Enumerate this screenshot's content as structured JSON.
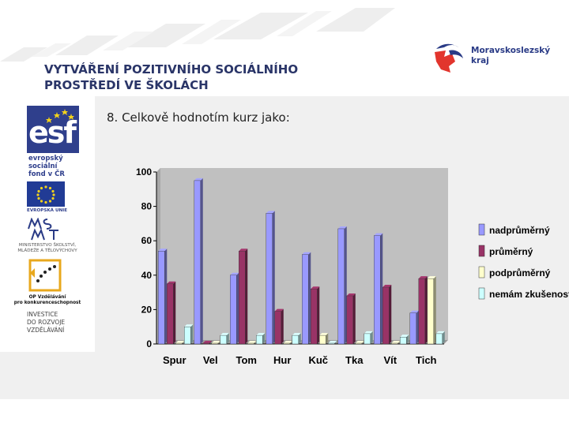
{
  "slide": {
    "title_line1": "VYTVÁŘENÍ POZITIVNÍHO SOCIÁLNÍHO",
    "title_line2": "PROSTŘEDÍ VE ŠKOLÁCH",
    "question": "8. Celkově hodnotím kurz jako:"
  },
  "brand": {
    "name_line1": "Moravskoslezský",
    "name_line2": "kraj",
    "icon": "moravian-silesian-region-logo"
  },
  "sidebar": {
    "esf_word": "esf",
    "esf_sub": [
      "evropský",
      "sociální",
      "fond v ČR"
    ],
    "eu_label": "EVROPSKÁ UNIE",
    "msmt_label": [
      "MINISTERSTVO ŠKOLSTVÍ,",
      "MLÁDEŽE A TĚLOVÝCHOVY"
    ],
    "op_label": [
      "OP Vzdělávání",
      "pro konkurenceschopnost"
    ],
    "invest_label": [
      "INVESTICE",
      "DO ROZVOJE",
      "VZDĚLÁVÁNÍ"
    ]
  },
  "colors": {
    "title": "#2a3568",
    "plot_bg": "#c0c0c0",
    "series": [
      "#9999ff",
      "#993366",
      "#ffffcc",
      "#ccffff"
    ]
  },
  "chart_data": {
    "type": "bar",
    "categories": [
      "Spur",
      "Vel",
      "Tom",
      "Hur",
      "Kuč",
      "Tka",
      "Vít",
      "Tich"
    ],
    "series": [
      {
        "name": "nadprůměrný",
        "values": [
          54,
          95,
          40,
          76,
          52,
          67,
          63,
          18
        ]
      },
      {
        "name": "průměrný",
        "values": [
          35,
          0,
          54,
          19,
          32,
          28,
          33,
          38
        ]
      },
      {
        "name": "podprůměrný",
        "values": [
          0,
          0,
          0,
          0,
          5,
          0,
          0,
          38
        ]
      },
      {
        "name": "nemám zkušenost",
        "values": [
          10,
          5,
          5,
          5,
          0,
          6,
          4,
          6
        ]
      }
    ],
    "yticks": [
      0,
      20,
      40,
      60,
      80,
      100
    ],
    "ylim": [
      0,
      100
    ],
    "grid": false,
    "legend": "right",
    "style": "3d"
  }
}
